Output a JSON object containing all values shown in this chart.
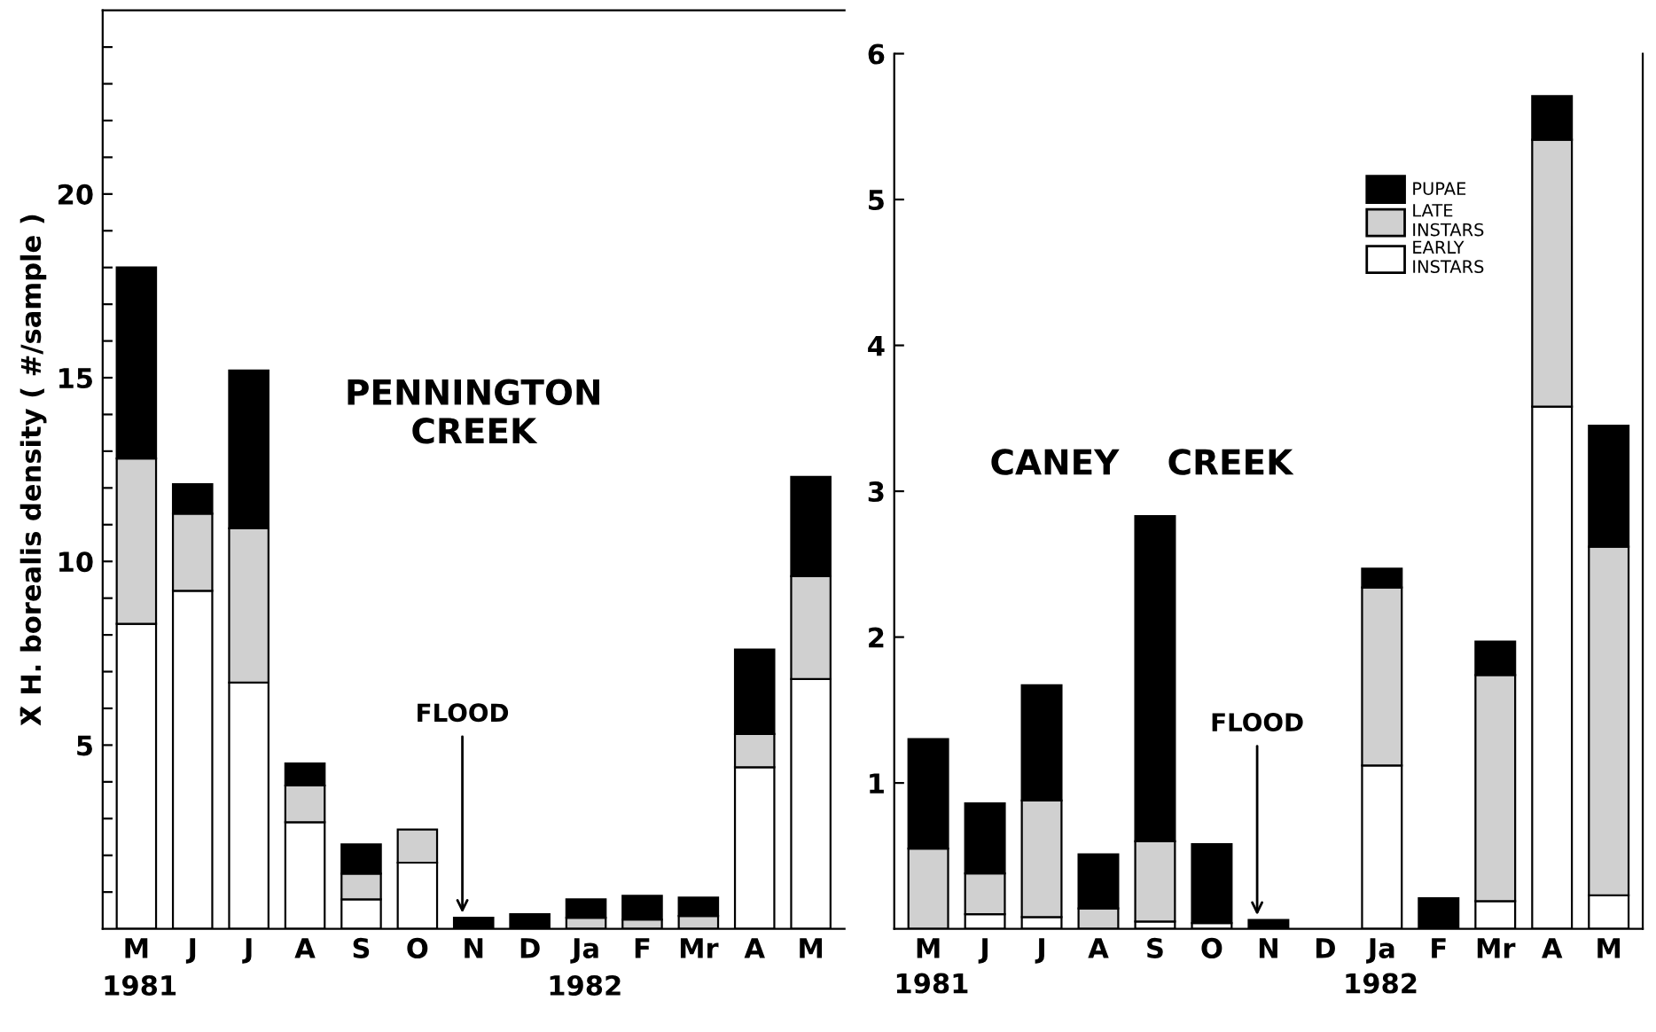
{
  "chart_data": [
    {
      "type": "bar",
      "title": "PENNINGTON\nCREEK",
      "ylabel": "X̄ H. borealis density ( #/sample )",
      "stacked": true,
      "legend": false,
      "categories": [
        "M",
        "J",
        "J",
        "A",
        "S",
        "O",
        "N",
        "D",
        "Ja",
        "F",
        "Mr",
        "A",
        "M"
      ],
      "ylim": [
        0,
        25
      ],
      "yticks": [
        {
          "value": 1,
          "label": null
        },
        {
          "value": 2,
          "label": null
        },
        {
          "value": 3,
          "label": null
        },
        {
          "value": 4,
          "label": null
        },
        5,
        {
          "value": 6,
          "label": null
        },
        {
          "value": 7,
          "label": null
        },
        {
          "value": 8,
          "label": null
        },
        {
          "value": 9,
          "label": null
        },
        10,
        {
          "value": 11,
          "label": null
        },
        {
          "value": 12,
          "label": null
        },
        {
          "value": 13,
          "label": null
        },
        {
          "value": 14,
          "label": null
        },
        15,
        {
          "value": 16,
          "label": null
        },
        {
          "value": 17,
          "label": null
        },
        {
          "value": 18,
          "label": null
        },
        {
          "value": 19,
          "label": null
        },
        20,
        {
          "value": 21,
          "label": null
        },
        {
          "value": 22,
          "label": null
        },
        {
          "value": 23,
          "label": null
        },
        {
          "value": 24,
          "label": null
        }
      ],
      "series": [
        {
          "color": "#ffffff",
          "values": [
            8.3,
            9.2,
            6.7,
            2.9,
            0.8,
            1.8,
            0,
            0,
            0,
            0,
            0,
            4.4,
            6.8
          ]
        },
        {
          "color": "#d0d0d0",
          "values": [
            4.5,
            2.1,
            4.2,
            1.0,
            0.7,
            0.9,
            0,
            0,
            0.3,
            0.25,
            0.35,
            0.9,
            2.8
          ]
        },
        {
          "color": "#000000",
          "values": [
            5.2,
            0.8,
            4.3,
            0.6,
            0.8,
            0,
            0.3,
            0.4,
            0.5,
            0.65,
            0.5,
            2.3,
            2.7
          ]
        }
      ],
      "annotations": [
        {
          "text": "FLOOD",
          "x": "N",
          "y": 0.3
        },
        "1981",
        "1982"
      ]
    },
    {
      "type": "bar",
      "title": "CANEY    CREEK",
      "stacked": true,
      "legend": "top right",
      "categories": [
        "M",
        "J",
        "J",
        "A",
        "S",
        "O",
        "N",
        "D",
        "Ja",
        "F",
        "Mr",
        "A",
        "M"
      ],
      "ylim": [
        0,
        6
      ],
      "yticks": [
        1,
        2,
        3,
        4,
        5,
        6
      ],
      "series": [
        {
          "name": "EARLY\nINSTARS",
          "color": "#ffffff",
          "values": [
            0,
            0.1,
            0.08,
            0,
            0.05,
            0.04,
            0,
            0,
            1.12,
            0,
            0.19,
            3.58,
            0.23
          ]
        },
        {
          "name": "LATE\nINSTARS",
          "color": "#d0d0d0",
          "values": [
            0.55,
            0.28,
            0.8,
            0.14,
            0.55,
            0,
            0,
            0,
            1.22,
            0,
            1.55,
            1.83,
            2.39
          ]
        },
        {
          "name": "PUPAE",
          "color": "#000000",
          "values": [
            0.75,
            0.48,
            0.79,
            0.37,
            2.23,
            0.54,
            0.06,
            0,
            0.13,
            0.21,
            0.23,
            0.3,
            0.83
          ]
        }
      ],
      "annotations": [
        {
          "text": "FLOOD",
          "x": "N",
          "y": 0.06
        },
        "1981",
        "1982"
      ]
    }
  ]
}
